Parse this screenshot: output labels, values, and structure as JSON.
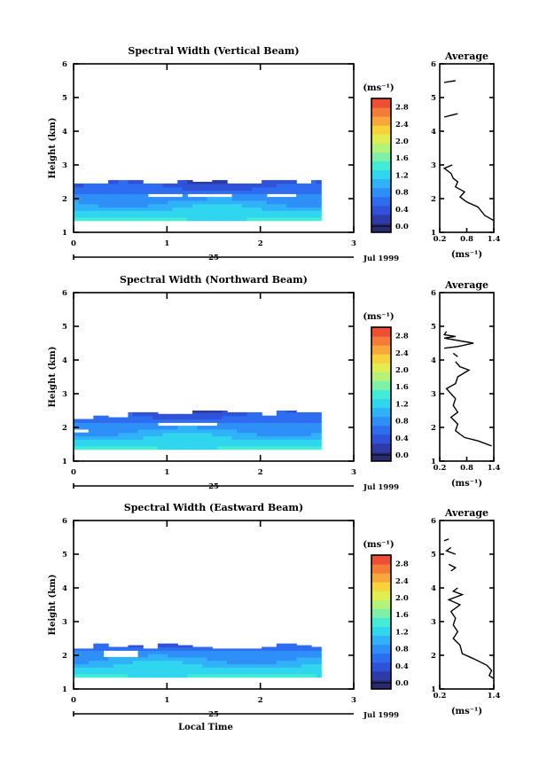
{
  "chart_data": [
    {
      "type": "heatmap",
      "title": "Spectral Width (Vertical Beam)",
      "ylabel": "Height (km)",
      "xlim": [
        0,
        3
      ],
      "ylim": [
        1,
        6
      ],
      "xticks": [
        "0",
        "1",
        "2",
        "3"
      ],
      "yticks": [
        "1",
        "2",
        "3",
        "4",
        "5",
        "6"
      ],
      "date_axis": {
        "day": "25",
        "month_year": "Jul 1999"
      },
      "colorbar": {
        "unit": "(ms⁻¹)",
        "ticks": [
          "0.0",
          "0.4",
          "0.8",
          "1.2",
          "1.6",
          "2.0",
          "2.4",
          "2.8"
        ],
        "range": [
          0,
          3.0
        ]
      },
      "data_extent": {
        "time_end": 2.65
      },
      "average_profile": {
        "title": "Average",
        "xlabel": "(ms⁻¹)",
        "xticks": [
          "0.2",
          "0.8",
          "1.4"
        ],
        "xlim": [
          0.2,
          1.4
        ],
        "segments": [
          [
            [
              0.55,
              5.5
            ],
            [
              0.3,
              5.45
            ]
          ],
          [
            [
              0.6,
              4.52
            ],
            [
              0.3,
              4.42
            ]
          ],
          [
            [
              0.48,
              3.0
            ],
            [
              0.3,
              2.9
            ],
            [
              0.45,
              2.75
            ],
            [
              0.5,
              2.6
            ],
            [
              0.6,
              2.5
            ],
            [
              0.55,
              2.35
            ],
            [
              0.75,
              2.2
            ],
            [
              0.65,
              2.05
            ],
            [
              0.8,
              1.9
            ],
            [
              1.05,
              1.75
            ],
            [
              1.2,
              1.5
            ],
            [
              1.4,
              1.35
            ]
          ]
        ]
      }
    },
    {
      "type": "heatmap",
      "title": "Spectral Width (Northward Beam)",
      "ylabel": "Height (km)",
      "xlim": [
        0,
        3
      ],
      "ylim": [
        1,
        6
      ],
      "xticks": [
        "0",
        "1",
        "2",
        "3"
      ],
      "yticks": [
        "1",
        "2",
        "3",
        "4",
        "5",
        "6"
      ],
      "date_axis": {
        "day": "25",
        "month_year": "Jul 1999"
      },
      "colorbar": {
        "unit": "(ms⁻¹)",
        "ticks": [
          "0.0",
          "0.4",
          "0.8",
          "1.2",
          "1.6",
          "2.0",
          "2.4",
          "2.8"
        ],
        "range": [
          0,
          3.0
        ]
      },
      "data_extent": {
        "time_end": 2.65
      },
      "average_profile": {
        "title": "Average",
        "xlabel": "(ms⁻¹)",
        "xticks": [
          "0.2",
          "0.8",
          "1.4"
        ],
        "xlim": [
          0.2,
          1.4
        ],
        "segments": [
          [
            [
              0.35,
              4.85
            ],
            [
              0.3,
              4.75
            ],
            [
              0.55,
              4.7
            ],
            [
              0.3,
              4.65
            ],
            [
              0.95,
              4.5
            ],
            [
              0.6,
              4.4
            ],
            [
              0.3,
              4.35
            ]
          ],
          [
            [
              0.5,
              4.2
            ],
            [
              0.6,
              4.1
            ]
          ],
          [
            [
              0.55,
              3.95
            ],
            [
              0.65,
              3.8
            ],
            [
              0.85,
              3.7
            ],
            [
              0.6,
              3.5
            ],
            [
              0.55,
              3.3
            ],
            [
              0.35,
              3.15
            ],
            [
              0.45,
              3.0
            ],
            [
              0.55,
              2.85
            ],
            [
              0.5,
              2.65
            ],
            [
              0.6,
              2.45
            ],
            [
              0.45,
              2.3
            ],
            [
              0.6,
              2.1
            ],
            [
              0.55,
              1.9
            ],
            [
              0.75,
              1.7
            ],
            [
              1.05,
              1.6
            ],
            [
              1.35,
              1.45
            ]
          ]
        ]
      }
    },
    {
      "type": "heatmap",
      "title": "Spectral Width (Eastward Beam)",
      "ylabel": "Height (km)",
      "xlabel": "Local Time",
      "xlim": [
        0,
        3
      ],
      "ylim": [
        1,
        6
      ],
      "xticks": [
        "0",
        "1",
        "2",
        "3"
      ],
      "yticks": [
        "1",
        "2",
        "3",
        "4",
        "5",
        "6"
      ],
      "date_axis": {
        "day": "25",
        "month_year": "Jul 1999"
      },
      "colorbar": {
        "unit": "(ms⁻¹)",
        "ticks": [
          "0.0",
          "0.4",
          "0.8",
          "1.2",
          "1.6",
          "2.0",
          "2.4",
          "2.8"
        ],
        "range": [
          0,
          3.0
        ]
      },
      "data_extent": {
        "time_end": 2.65
      },
      "average_profile": {
        "title": "Average",
        "xlabel": "(ms⁻¹)",
        "xticks": [
          "0.2",
          "1.4"
        ],
        "xlim": [
          0.2,
          1.4
        ],
        "segments": [
          [
            [
              0.4,
              5.45
            ],
            [
              0.3,
              5.4
            ]
          ],
          [
            [
              0.45,
              5.2
            ],
            [
              0.35,
              5.1
            ],
            [
              0.55,
              5.0
            ]
          ],
          [
            [
              0.4,
              4.7
            ],
            [
              0.55,
              4.6
            ],
            [
              0.45,
              4.5
            ]
          ],
          [
            [
              0.6,
              4.0
            ],
            [
              0.5,
              3.9
            ],
            [
              0.7,
              3.8
            ],
            [
              0.4,
              3.65
            ],
            [
              0.65,
              3.5
            ],
            [
              0.45,
              3.3
            ],
            [
              0.55,
              3.1
            ],
            [
              0.5,
              2.9
            ],
            [
              0.6,
              2.7
            ],
            [
              0.5,
              2.5
            ],
            [
              0.65,
              2.3
            ],
            [
              0.7,
              2.05
            ],
            [
              0.95,
              1.9
            ],
            [
              1.25,
              1.7
            ],
            [
              1.35,
              1.55
            ],
            [
              1.3,
              1.4
            ],
            [
              1.4,
              1.3
            ]
          ]
        ]
      }
    }
  ]
}
